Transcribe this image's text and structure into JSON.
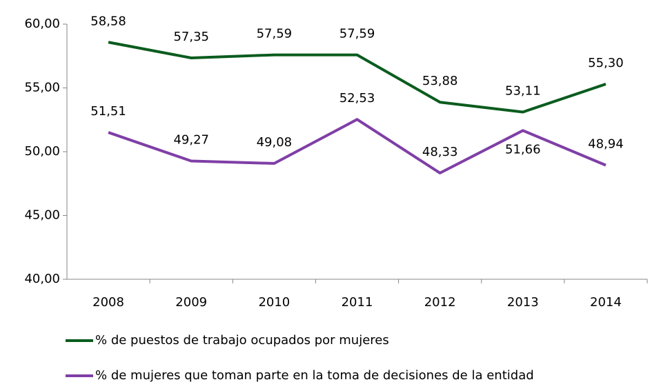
{
  "chart_data": {
    "type": "line",
    "categories": [
      "2008",
      "2009",
      "2010",
      "2011",
      "2012",
      "2013",
      "2014"
    ],
    "series": [
      {
        "name": "% de puestos de trabajo ocupados por mujeres",
        "color": "#0a5c1e",
        "values": [
          58.58,
          57.35,
          57.59,
          57.59,
          53.88,
          53.11,
          55.3
        ],
        "value_labels": [
          "58,58",
          "57,35",
          "57,59",
          "57,59",
          "53,88",
          "53,11",
          "55,30"
        ]
      },
      {
        "name": "% de mujeres que toman parte en la toma de decisiones de la entidad",
        "color": "#7f3fa6",
        "values": [
          51.51,
          49.27,
          49.08,
          52.53,
          48.33,
          51.66,
          48.94
        ],
        "value_labels": [
          "51,51",
          "49,27",
          "49,08",
          "52,53",
          "48,33",
          "51,66",
          "48,94"
        ]
      }
    ],
    "ylim": [
      40,
      60
    ],
    "yticks": [
      {
        "value": 40,
        "label": "40,00"
      },
      {
        "value": 45,
        "label": "45,00"
      },
      {
        "value": 50,
        "label": "50,00"
      },
      {
        "value": 55,
        "label": "55,00"
      },
      {
        "value": 60,
        "label": "60,00"
      }
    ],
    "grid": false
  }
}
